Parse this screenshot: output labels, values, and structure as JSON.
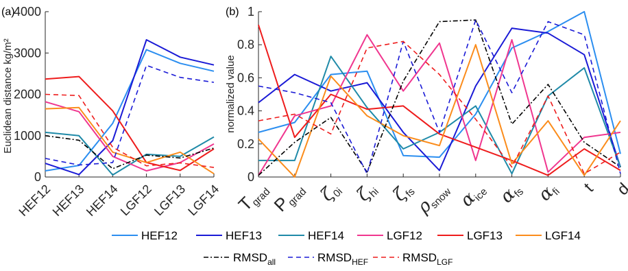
{
  "colors": {
    "HEF12": "#2b8ef0",
    "HEF13": "#1a1ad6",
    "HEF14": "#1f8aa8",
    "LGF12": "#f0368f",
    "LGF13": "#ee1c1c",
    "LGF14": "#fb8c1b",
    "RMSD_all": "#000000",
    "RMSD_HEF": "#1a1ad6",
    "RMSD_LGF": "#ee1c1c"
  },
  "legend": {
    "row1": [
      "HEF12",
      "HEF13",
      "HEF14",
      "LGF12",
      "LGF13",
      "LGF14"
    ],
    "row2": [
      {
        "key": "RMSD_all",
        "base": "RMSD",
        "sub": "all"
      },
      {
        "key": "RMSD_HEF",
        "base": "RMSD",
        "sub": "HEF"
      },
      {
        "key": "RMSD_LGF",
        "base": "RMSD",
        "sub": "LGF"
      }
    ]
  },
  "chart_data": [
    {
      "panel_label": "(a)",
      "type": "line",
      "ylabel": "Euclidean distance kg/m²",
      "ylim": [
        0,
        4000
      ],
      "yticks": [
        0,
        1000,
        2000,
        3000,
        4000
      ],
      "categories": [
        "HEF12",
        "HEF13",
        "HEF14",
        "LGF12",
        "LGF13",
        "LGF14"
      ],
      "series": [
        {
          "name": "HEF12",
          "style": "solid",
          "values": [
            150,
            280,
            1300,
            3080,
            2750,
            2560
          ]
        },
        {
          "name": "HEF13",
          "style": "solid",
          "values": [
            330,
            60,
            880,
            3320,
            2900,
            2710
          ]
        },
        {
          "name": "HEF14",
          "style": "solid",
          "values": [
            1080,
            1000,
            50,
            550,
            500,
            970
          ]
        },
        {
          "name": "LGF12",
          "style": "solid",
          "values": [
            1820,
            1580,
            500,
            150,
            350,
            800
          ]
        },
        {
          "name": "LGF13",
          "style": "solid",
          "values": [
            2370,
            2430,
            1600,
            350,
            160,
            680
          ]
        },
        {
          "name": "LGF14",
          "style": "solid",
          "values": [
            1650,
            1680,
            600,
            350,
            600,
            80
          ]
        },
        {
          "name": "RMSD_all",
          "style": "dashdot",
          "values": [
            1000,
            890,
            200,
            530,
            460,
            700
          ]
        },
        {
          "name": "RMSD_HEF",
          "style": "dashed",
          "values": [
            450,
            290,
            350,
            2700,
            2410,
            2290
          ]
        },
        {
          "name": "RMSD_LGF",
          "style": "dashed",
          "values": [
            2000,
            1970,
            720,
            270,
            340,
            230
          ]
        }
      ]
    },
    {
      "panel_label": "(b)",
      "type": "line",
      "ylabel": "normalized value",
      "ylim": [
        0,
        1
      ],
      "yticks": [
        0,
        0.2,
        0.4,
        0.6,
        0.8,
        1
      ],
      "ytick_labels": [
        "0",
        "0.2",
        "0.4",
        "0.6",
        "0.8",
        "1"
      ],
      "categories": [
        {
          "base": "T",
          "sub": "grad"
        },
        {
          "base": "P",
          "sub": "grad"
        },
        {
          "base": "ζ",
          "sub": "0i"
        },
        {
          "base": "ζ",
          "sub": "hi"
        },
        {
          "base": "ζ",
          "sub": "fs"
        },
        {
          "base": "ρ",
          "sub": "snow"
        },
        {
          "base": "α",
          "sub": "ice"
        },
        {
          "base": "α",
          "sub": "fs"
        },
        {
          "base": "α",
          "sub": "fi"
        },
        {
          "base": "t",
          "sub": ""
        },
        {
          "base": "d",
          "sub": ""
        }
      ],
      "series": [
        {
          "name": "HEF12",
          "style": "solid",
          "values": [
            0.27,
            0.33,
            0.62,
            0.64,
            0.13,
            0.12,
            0.38,
            0.78,
            0.88,
            1.0,
            0.14
          ]
        },
        {
          "name": "HEF13",
          "style": "solid",
          "values": [
            0.45,
            0.62,
            0.52,
            0.57,
            0.27,
            0.04,
            0.55,
            0.9,
            0.87,
            0.74,
            0.06
          ]
        },
        {
          "name": "HEF14",
          "style": "solid",
          "values": [
            0.1,
            0.1,
            0.73,
            0.42,
            0.17,
            0.27,
            0.43,
            0.02,
            0.49,
            0.66,
            0.06
          ]
        },
        {
          "name": "LGF12",
          "style": "solid",
          "values": [
            0.01,
            0.37,
            0.43,
            0.86,
            0.52,
            0.81,
            0.1,
            0.83,
            0.03,
            0.24,
            0.27
          ]
        },
        {
          "name": "LGF13",
          "style": "solid",
          "values": [
            0.92,
            0.24,
            0.5,
            0.41,
            0.43,
            0.26,
            0.18,
            0.1,
            0.01,
            0.17,
            0.04
          ]
        },
        {
          "name": "LGF14",
          "style": "solid",
          "values": [
            0.23,
            0.0,
            0.61,
            0.37,
            0.25,
            0.19,
            0.8,
            0.08,
            0.34,
            0.01,
            0.34
          ]
        },
        {
          "name": "RMSD_all",
          "style": "dashdot",
          "values": [
            0.01,
            0.21,
            0.36,
            0.03,
            0.58,
            0.94,
            0.95,
            0.32,
            0.56,
            0.21,
            0.06
          ]
        },
        {
          "name": "RMSD_HEF",
          "style": "dashed",
          "values": [
            0.55,
            0.51,
            0.45,
            0.02,
            0.82,
            0.27,
            0.95,
            0.51,
            0.94,
            0.86,
            0.02
          ]
        },
        {
          "name": "RMSD_LGF",
          "style": "dashed",
          "values": [
            0.34,
            0.38,
            0.26,
            0.78,
            0.82,
            0.62,
            0.35,
            0.06,
            0.49,
            0.02,
            0.15
          ]
        }
      ]
    }
  ]
}
